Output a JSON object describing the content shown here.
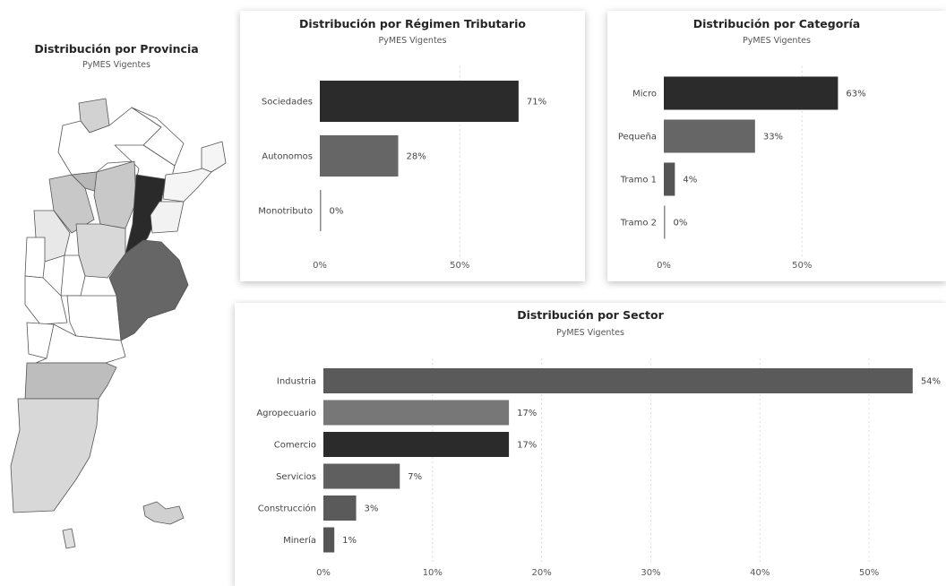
{
  "map": {
    "title": "Distribución por Provincia",
    "subtitle": "PyMES Vigentes"
  },
  "chart_data": [
    {
      "type": "bar",
      "orientation": "horizontal",
      "title": "Distribución por Régimen Tributario",
      "subtitle": "PyMES Vigentes",
      "categories": [
        "Sociedades",
        "Autonomos",
        "Monotributo"
      ],
      "values": [
        71,
        28,
        0
      ],
      "value_labels": [
        "71%",
        "28%",
        "0%"
      ],
      "colors": [
        "#2b2b2b",
        "#666666",
        "#888888"
      ],
      "xticks": [
        "0%",
        "50%"
      ],
      "xlim": [
        0,
        80
      ],
      "grid": true
    },
    {
      "type": "bar",
      "orientation": "horizontal",
      "title": "Distribución por Categoría",
      "subtitle": "PyMES Vigentes",
      "categories": [
        "Micro",
        "Pequeña",
        "Tramo 1",
        "Tramo 2"
      ],
      "values": [
        63,
        33,
        4,
        0
      ],
      "value_labels": [
        "63%",
        "33%",
        "4%",
        "0%"
      ],
      "colors": [
        "#2b2b2b",
        "#666666",
        "#555555",
        "#888888"
      ],
      "xticks": [
        "0%",
        "50%"
      ],
      "xlim": [
        0,
        70
      ],
      "grid": true
    },
    {
      "type": "bar",
      "orientation": "horizontal",
      "title": "Distribución por Sector",
      "subtitle": "PyMES Vigentes",
      "categories": [
        "Industria",
        "Agropecuario",
        "Comercio",
        "Servicios",
        "Construcción",
        "Minería"
      ],
      "values": [
        54,
        17,
        17,
        7,
        3,
        1
      ],
      "value_labels": [
        "54%",
        "17%",
        "17%",
        "7%",
        "3%",
        "1%"
      ],
      "colors": [
        "#5a5a5a",
        "#777777",
        "#2b2b2b",
        "#5f5f5f",
        "#5a5a5a",
        "#555555"
      ],
      "xticks": [
        "0%",
        "10%",
        "20%",
        "30%",
        "40%",
        "50%"
      ],
      "xlim": [
        0,
        55
      ],
      "grid": true
    }
  ]
}
